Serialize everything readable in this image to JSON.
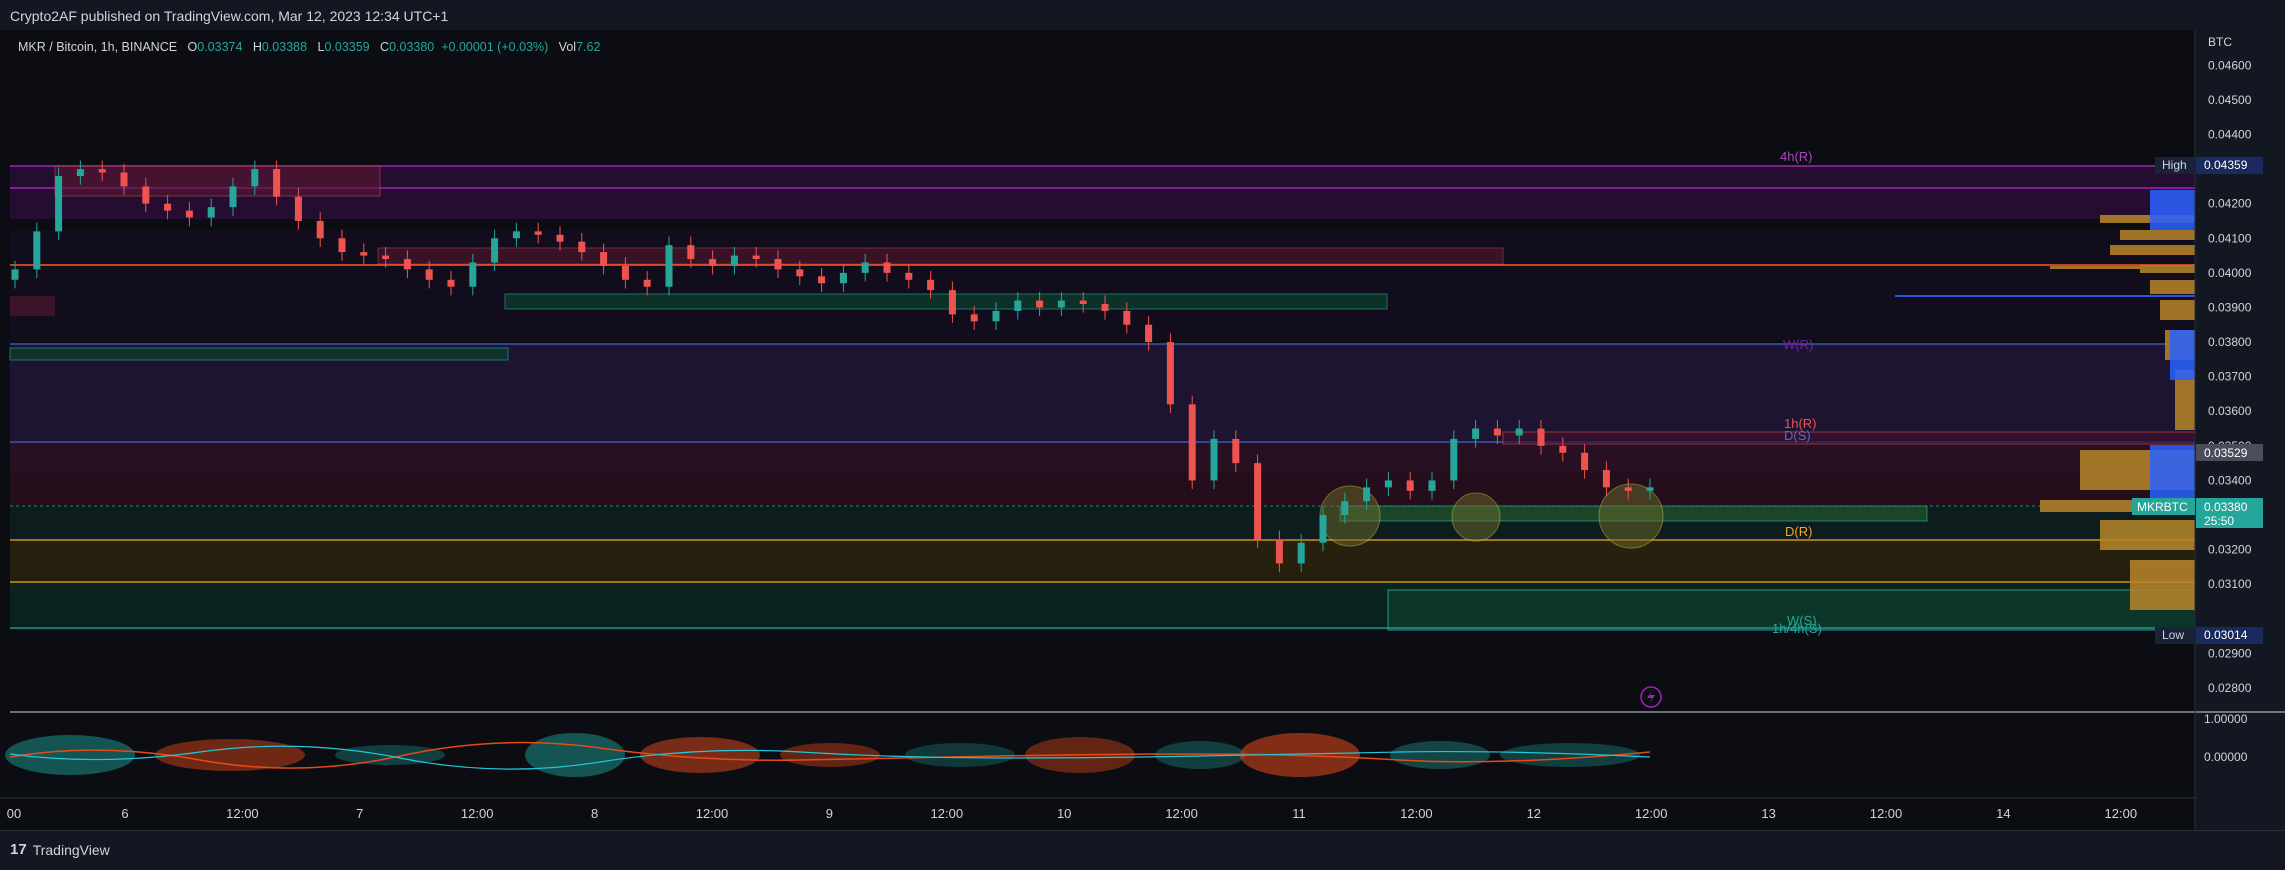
{
  "header": {
    "published": "Crypto2AF published on TradingView.com, Mar 12, 2023 12:34 UTC+1"
  },
  "legend": {
    "symbol": "MKR / Bitcoin, 1h, BINANCE",
    "o_label": "O",
    "o": "0.03374",
    "h_label": "H",
    "h": "0.03388",
    "l_label": "L",
    "l": "0.03359",
    "c_label": "C",
    "c": "0.03380",
    "change": "+0.00001 (+0.03%)",
    "vol_label": "Vol",
    "vol": "7.62"
  },
  "price_axis": {
    "currency": "BTC",
    "ticks": [
      "0.04600",
      "0.04500",
      "0.04400",
      "0.04300",
      "0.04200",
      "0.04100",
      "0.04000",
      "0.03900",
      "0.03800",
      "0.03700",
      "0.03600",
      "0.03500",
      "0.03400",
      "0.03300",
      "0.03200",
      "0.03100",
      "0.02900",
      "0.02800"
    ],
    "high_label": "High",
    "high_value": "0.04359",
    "low_label": "Low",
    "low_value": "0.03014",
    "marker_value": "0.03529",
    "symbol_label": "MKRBTC",
    "last_value": "0.03380",
    "countdown": "25:50"
  },
  "osc_axis": {
    "ticks": [
      "1.00000",
      "0.00000"
    ]
  },
  "time_axis": {
    "ticks": [
      "00",
      "6",
      "12:00",
      "7",
      "12:00",
      "8",
      "12:00",
      "9",
      "12:00",
      "10",
      "12:00",
      "11",
      "12:00",
      "12",
      "12:00",
      "13",
      "12:00",
      "14",
      "12:00"
    ]
  },
  "zones": {
    "h4r": "4h(R)",
    "wr": "W(R)",
    "h1r": "1h(R)",
    "ds": "D(S)",
    "dr": "D(R)",
    "ws": "W(S)",
    "h14hs": "1h/4h(S)"
  },
  "footer": {
    "brand": "TradingView"
  },
  "colors": {
    "up": "#26a69a",
    "down": "#ef5350",
    "bg": "#131722",
    "accent": "#2962ff"
  },
  "chart_data": {
    "type": "candlestick",
    "price_range": [
      0.028,
      0.0465
    ],
    "candles_close_approx": [
      0.0401,
      0.0412,
      0.0428,
      0.043,
      0.0429,
      0.0425,
      0.042,
      0.0418,
      0.0416,
      0.0419,
      0.0425,
      0.043,
      0.0422,
      0.0415,
      0.041,
      0.0406,
      0.0405,
      0.0404,
      0.0401,
      0.0398,
      0.0396,
      0.0403,
      0.041,
      0.0412,
      0.0411,
      0.0409,
      0.0406,
      0.0402,
      0.0398,
      0.0396,
      0.0408,
      0.0404,
      0.0402,
      0.0405,
      0.0404,
      0.0401,
      0.0399,
      0.0397,
      0.04,
      0.0403,
      0.04,
      0.0398,
      0.0395,
      0.0388,
      0.0386,
      0.0389,
      0.0392,
      0.039,
      0.0392,
      0.0391,
      0.0389,
      0.0385,
      0.038,
      0.0362,
      0.034,
      0.0352,
      0.0345,
      0.0323,
      0.0316,
      0.0322,
      0.033,
      0.0334,
      0.0338,
      0.034,
      0.0337,
      0.034,
      0.0352,
      0.0355,
      0.0353,
      0.0355,
      0.035,
      0.0348,
      0.0343,
      0.0338,
      0.0337,
      0.0338
    ]
  }
}
